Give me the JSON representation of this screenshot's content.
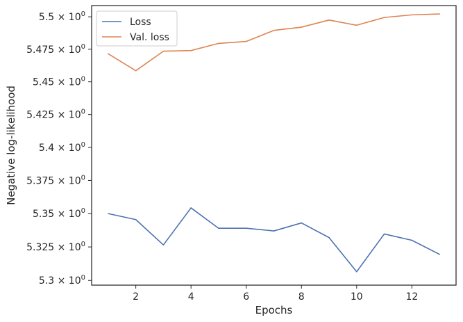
{
  "chart_data": {
    "type": "line",
    "title": "",
    "xlabel": "Epochs",
    "ylabel": "Negative log-likelihood",
    "x": [
      1,
      2,
      3,
      4,
      5,
      6,
      7,
      8,
      9,
      10,
      11,
      12,
      13
    ],
    "xlim": [
      0.4,
      13.6
    ],
    "ylim": [
      5.2965,
      5.5087
    ],
    "yscale": "log",
    "x_ticks": [
      2,
      4,
      6,
      8,
      10,
      12
    ],
    "y_ticks": [
      5.3,
      5.325,
      5.35,
      5.375,
      5.4,
      5.425,
      5.45,
      5.475,
      5.5
    ],
    "y_tick_labels": [
      "5.3",
      "5.325",
      "5.35",
      "5.375",
      "5.4",
      "5.425",
      "5.45",
      "5.475",
      "5.5"
    ],
    "y_tick_suffix_base": "10",
    "y_tick_suffix_exp": "0",
    "grid": false,
    "legend_position": "top-left",
    "series": [
      {
        "name": "Loss",
        "color": "#4c72b0",
        "values": [
          5.35,
          5.3455,
          5.3265,
          5.3543,
          5.339,
          5.339,
          5.337,
          5.343,
          5.332,
          5.3065,
          5.3347,
          5.33,
          5.3195
        ]
      },
      {
        "name": "Val. loss",
        "color": "#dd8452",
        "values": [
          5.4715,
          5.4585,
          5.4735,
          5.474,
          5.4795,
          5.481,
          5.4895,
          5.492,
          5.4975,
          5.4935,
          5.4995,
          5.5015,
          5.5022
        ]
      }
    ]
  }
}
